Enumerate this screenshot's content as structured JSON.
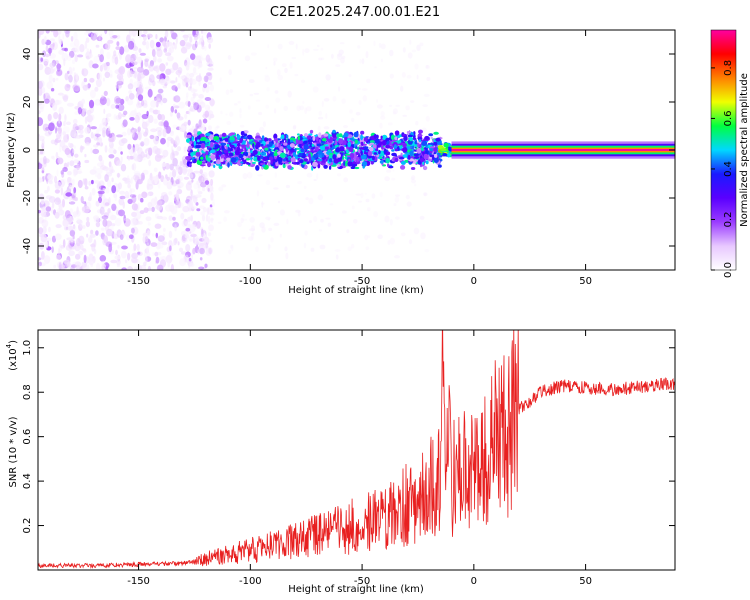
{
  "title": "C2E1.2025.247.00.01.E21",
  "chart_data": [
    {
      "type": "heatmap",
      "name": "spectrogram",
      "xlabel": "Height of straight line (km)",
      "ylabel": "Frequency (Hz)",
      "xlim": [
        -195,
        90
      ],
      "ylim": [
        -50,
        50
      ],
      "xticks": [
        -150,
        -100,
        -50,
        0,
        50
      ],
      "xtick_labels": [
        "-150",
        "-100",
        "-50",
        "0",
        "50"
      ],
      "yticks": [
        -40,
        -20,
        0,
        20,
        40
      ],
      "ytick_labels": [
        "-40",
        "-20",
        "0",
        "20",
        "40"
      ],
      "colorbar": {
        "label": "Normalized spectral amplitude",
        "range": [
          0,
          0.95
        ],
        "ticks": [
          0,
          0.2,
          0.4,
          0.6,
          0.8
        ],
        "tick_labels": [
          "0.0",
          "0.2",
          "0.4",
          "0.6",
          "0.8"
        ],
        "colormap": [
          "#ffffff",
          "#e8c8ff",
          "#9a3cff",
          "#5a00ff",
          "#1a1aff",
          "#00d8ff",
          "#00ff40",
          "#f0ff00",
          "#ff8000",
          "#ff0000",
          "#ff00a0"
        ]
      },
      "regions": [
        {
          "desc": "scattered noise",
          "x_range": [
            -195,
            -125
          ],
          "freq_range": [
            -50,
            50
          ],
          "amplitude": 0.05
        },
        {
          "desc": "broadband band",
          "x_range": [
            -128,
            -15
          ],
          "freq_range": [
            -10,
            7
          ],
          "amplitude": 0.25
        },
        {
          "desc": "transition",
          "x_range": [
            -15,
            15
          ],
          "freq_range": [
            -3,
            3
          ],
          "amplitude": 0.5
        },
        {
          "desc": "narrow carrier",
          "x_range": [
            15,
            90
          ],
          "freq_range": [
            -1.5,
            1.5
          ],
          "amplitude": 0.95
        }
      ]
    },
    {
      "type": "line",
      "name": "snr",
      "xlabel": "Height of straight line (km)",
      "ylabel": "SNR (10 * v/v)",
      "y_scale_label": "(x10",
      "y_scale_exp": "4",
      "xlim": [
        -195,
        90
      ],
      "ylim": [
        0,
        1.08
      ],
      "xticks": [
        -150,
        -100,
        -50,
        0,
        50
      ],
      "xtick_labels": [
        "-150",
        "-100",
        "-50",
        "0",
        "50"
      ],
      "yticks": [
        0.2,
        0.4,
        0.6,
        0.8,
        1.0
      ],
      "ytick_labels": [
        "0.2",
        "0.4",
        "0.6",
        "0.8",
        "1.0"
      ],
      "color": "#e82020",
      "series": [
        {
          "name": "SNR",
          "x": [
            -195,
            -170,
            -150,
            -130,
            -120,
            -100,
            -80,
            -60,
            -40,
            -25,
            -15,
            -14,
            -10,
            0,
            10,
            20,
            30,
            40,
            60,
            80,
            90
          ],
          "y": [
            0.02,
            0.02,
            0.025,
            0.03,
            0.05,
            0.09,
            0.13,
            0.18,
            0.24,
            0.32,
            0.4,
            0.95,
            0.42,
            0.45,
            0.58,
            0.72,
            0.8,
            0.83,
            0.81,
            0.83,
            0.84
          ]
        }
      ]
    }
  ]
}
